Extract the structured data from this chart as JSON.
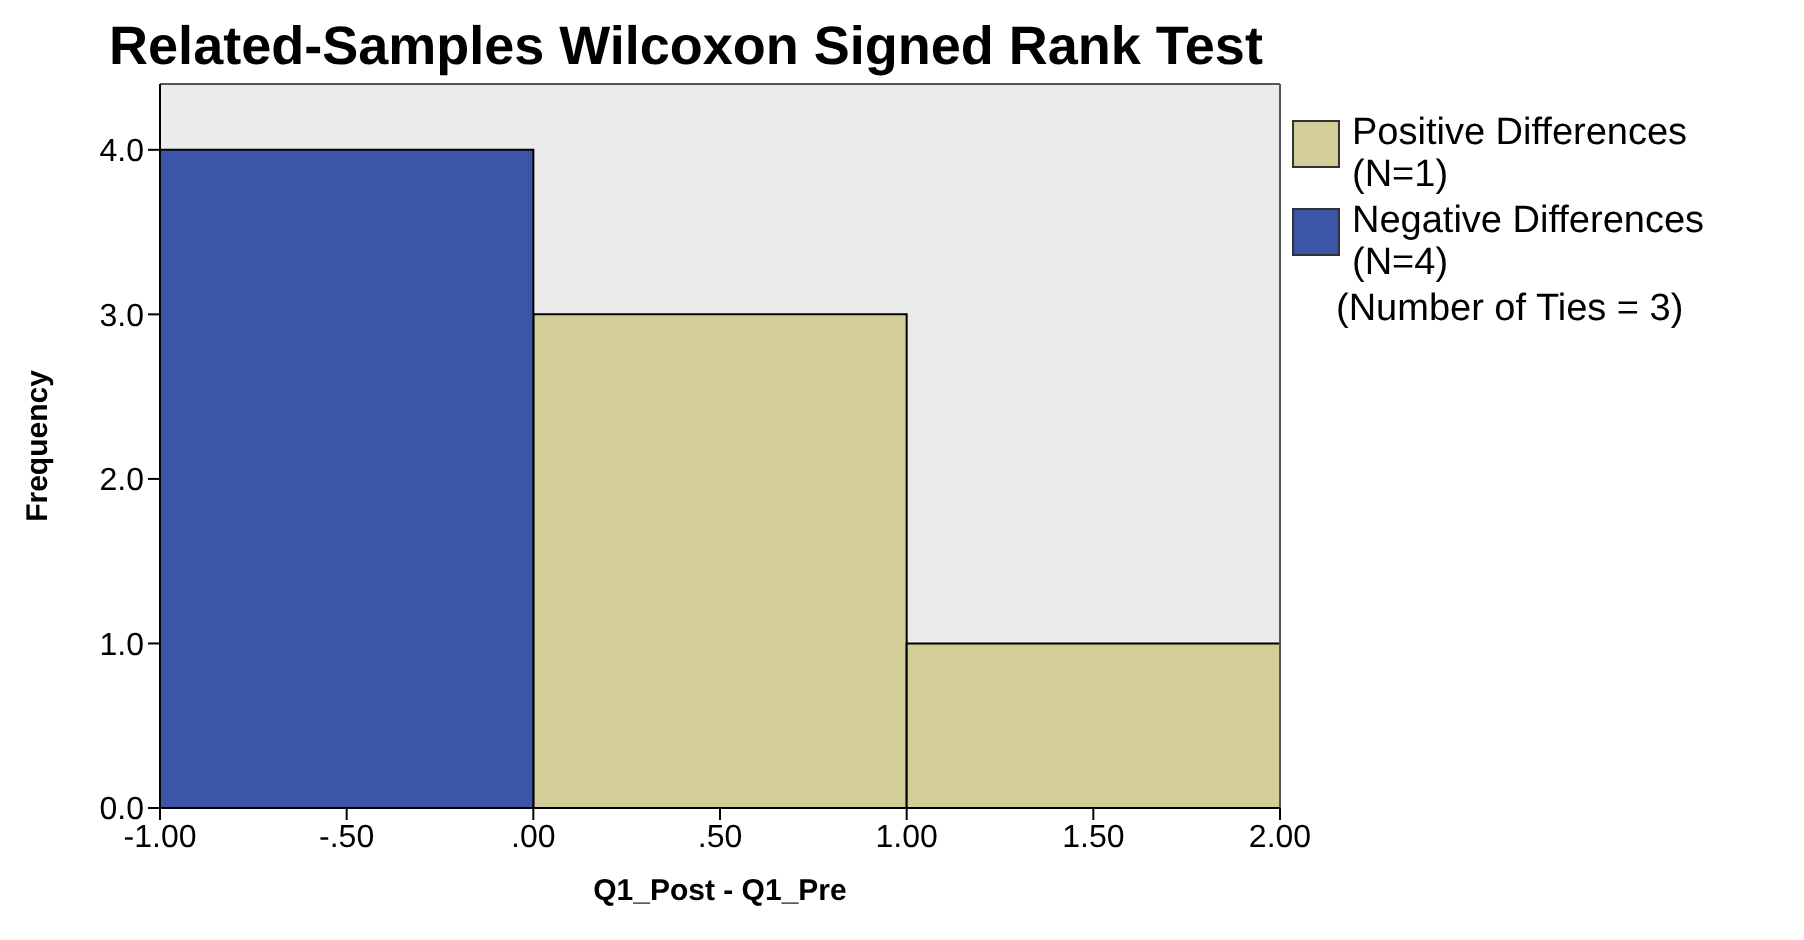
{
  "chart_data": {
    "type": "histogram",
    "title": "Related-Samples Wilcoxon Signed Rank Test",
    "xlabel": "Q1_Post - Q1_Pre",
    "ylabel": "Frequency",
    "bins": [
      -1,
      0,
      1,
      2
    ],
    "series": [
      {
        "name": "Positive Differences (N=1)",
        "color": "#d3cd98",
        "values": [
          null,
          3,
          1
        ]
      },
      {
        "name": "Negative Differences (N=4)",
        "color": "#3d55a8",
        "values": [
          4,
          null,
          null
        ]
      }
    ],
    "xlim": [
      -1,
      2
    ],
    "xticks": [
      {
        "value": -1,
        "label": "-1.00"
      },
      {
        "value": -0.5,
        "label": "-.50"
      },
      {
        "value": 0,
        "label": ".00"
      },
      {
        "value": 0.5,
        "label": ".50"
      },
      {
        "value": 1,
        "label": "1.00"
      },
      {
        "value": 1.5,
        "label": "1.50"
      },
      {
        "value": 2,
        "label": "2.00"
      }
    ],
    "ylim": [
      0,
      4.4
    ],
    "yticks": [
      {
        "value": 0,
        "label": "0.0"
      },
      {
        "value": 1,
        "label": "1.0"
      },
      {
        "value": 2,
        "label": "2.0"
      },
      {
        "value": 3,
        "label": "3.0"
      },
      {
        "value": 4,
        "label": "4.0"
      }
    ],
    "grid": false,
    "legend": "right",
    "annotations": [
      "(Number of Ties = 3)"
    ]
  }
}
